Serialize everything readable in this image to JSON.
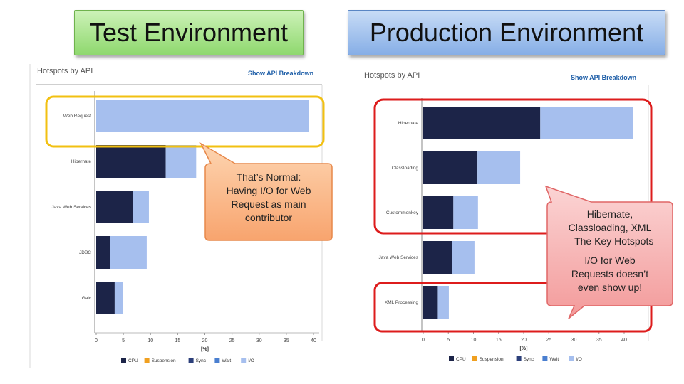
{
  "titles": {
    "test": "Test Environment",
    "production": "Production Environment"
  },
  "panels": {
    "header": "Hotspots by API",
    "link": "Show API Breakdown"
  },
  "callouts": {
    "test": [
      "That’s Normal:",
      "Having I/O for Web",
      "Request as main",
      "contributor"
    ],
    "prod_line1": [
      "Hibernate,",
      "Classloading, XML",
      "– The Key Hotspots"
    ],
    "prod_line2": [
      "I/O for Web",
      "Requests doesn’t",
      "even show up!"
    ]
  },
  "colors": {
    "cpu": "#1c2448",
    "suspension": "#f0a020",
    "sync": "#2c3f7a",
    "wait": "#4a7fd0",
    "io": "#a6bfee",
    "highlight_yellow": "#f2c011",
    "highlight_red": "#dd1c1c"
  },
  "chart_data": [
    {
      "type": "bar",
      "orientation": "horizontal",
      "stacked": true,
      "title": "Hotspots by API",
      "xlabel": "[%]",
      "xlim": [
        0,
        40
      ],
      "xticks": [
        "0",
        "5",
        "10",
        "15",
        "20",
        "25",
        "30",
        "35",
        "40"
      ],
      "categories": [
        "Web Request",
        "Hibernate",
        "Java Web Services",
        "JDBC",
        "Gaic"
      ],
      "series": [
        {
          "name": "CPU",
          "values": [
            0,
            12.8,
            6.8,
            2.5,
            3.4
          ]
        },
        {
          "name": "Suspension",
          "values": [
            0,
            0,
            0,
            0,
            0
          ]
        },
        {
          "name": "Sync",
          "values": [
            0,
            0,
            0,
            0,
            0
          ]
        },
        {
          "name": "Wait",
          "values": [
            0,
            0,
            0,
            0,
            0
          ]
        },
        {
          "name": "I/O",
          "values": [
            39.2,
            5.6,
            2.9,
            6.8,
            1.5
          ]
        }
      ],
      "legend": "bottom"
    },
    {
      "type": "bar",
      "orientation": "horizontal",
      "stacked": true,
      "title": "Hotspots by API",
      "xlabel": "[%]",
      "xlim": [
        0,
        40
      ],
      "xticks": [
        "0",
        "5",
        "10",
        "15",
        "20",
        "25",
        "30",
        "35",
        "40"
      ],
      "categories": [
        "Hibernate",
        "Classloading",
        "Custommonkey",
        "Java Web Services",
        "XML Processing"
      ],
      "series": [
        {
          "name": "CPU",
          "values": [
            23.3,
            10.8,
            6.0,
            5.8,
            2.9
          ]
        },
        {
          "name": "Suspension",
          "values": [
            0,
            0,
            0,
            0,
            0
          ]
        },
        {
          "name": "Sync",
          "values": [
            0,
            0,
            0,
            0,
            0
          ]
        },
        {
          "name": "Wait",
          "values": [
            0,
            0,
            0,
            0,
            0
          ]
        },
        {
          "name": "I/O",
          "values": [
            18.5,
            8.5,
            4.9,
            4.4,
            2.2
          ]
        }
      ],
      "legend": "bottom"
    }
  ]
}
